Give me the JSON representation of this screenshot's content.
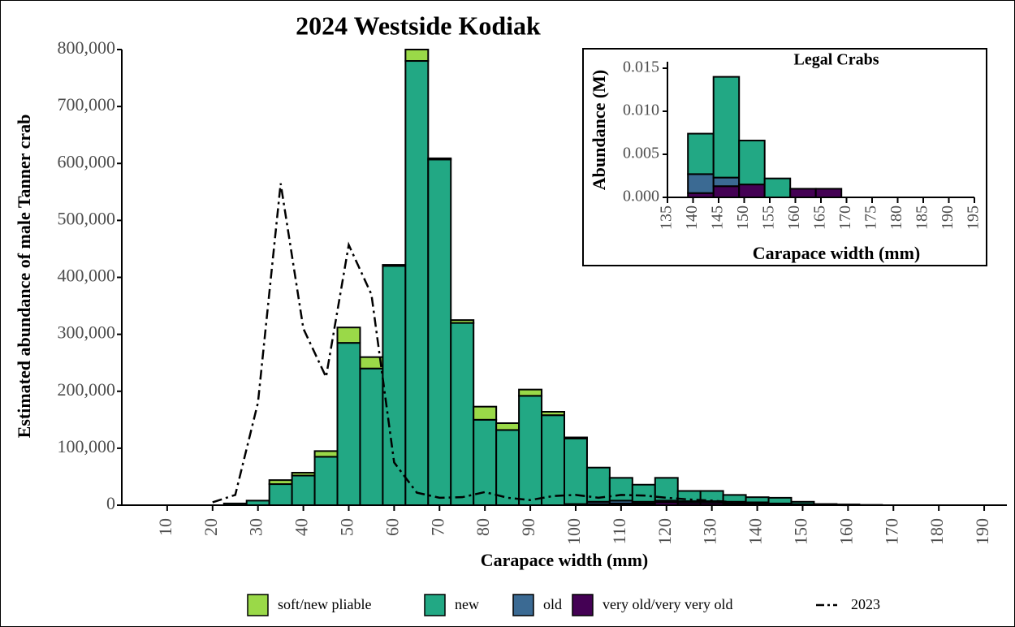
{
  "chart_data": [
    {
      "type": "bar",
      "title": "2024 Westside Kodiak",
      "xlabel": "Carapace width (mm)",
      "ylabel": "Estimated abundance of male Tanner crab",
      "x": [
        25,
        30,
        35,
        40,
        45,
        50,
        55,
        60,
        65,
        70,
        75,
        80,
        85,
        90,
        95,
        100,
        105,
        110,
        115,
        120,
        125,
        130,
        135,
        140,
        145,
        150,
        155,
        160,
        165
      ],
      "bar_width": 5,
      "stacked": true,
      "series": [
        {
          "name": "very old/very very old",
          "color": "#440154",
          "values": [
            null,
            null,
            null,
            null,
            null,
            null,
            null,
            null,
            null,
            null,
            null,
            null,
            null,
            null,
            null,
            null,
            2000,
            3000,
            3000,
            5000,
            4000,
            4000,
            3000,
            3000,
            2000,
            1000,
            500,
            300,
            null
          ]
        },
        {
          "name": "old",
          "color": "#3b6a93",
          "values": [
            null,
            null,
            null,
            null,
            null,
            null,
            null,
            null,
            null,
            null,
            null,
            null,
            null,
            null,
            null,
            2000,
            4000,
            5000,
            3000,
            3000,
            3000,
            3000,
            3000,
            2000,
            1000,
            1000,
            null,
            null,
            null
          ]
        },
        {
          "name": "new",
          "color": "#22a884",
          "values": [
            3000,
            8000,
            37000,
            52000,
            85000,
            285000,
            240000,
            420000,
            780000,
            607000,
            320000,
            150000,
            132000,
            192000,
            158000,
            115000,
            60000,
            40000,
            30000,
            40000,
            18000,
            18000,
            12000,
            9000,
            10000,
            4000,
            1500,
            1000,
            500
          ]
        },
        {
          "name": "soft/new pliable",
          "color": "#9ad948",
          "values": [
            null,
            null,
            7000,
            5000,
            10000,
            27000,
            20000,
            2000,
            20000,
            2000,
            5000,
            23000,
            12000,
            11000,
            6000,
            2000,
            null,
            null,
            null,
            null,
            null,
            null,
            null,
            null,
            null,
            null,
            null,
            null,
            null
          ]
        },
        {
          "name": "2023",
          "type": "line",
          "color": "#000000",
          "x": [
            20,
            25,
            30,
            35,
            40,
            45,
            50,
            55,
            60,
            65,
            70,
            75,
            80,
            85,
            90,
            95,
            100,
            105,
            110,
            115,
            120,
            125,
            130,
            135,
            140,
            145,
            150,
            155,
            160
          ],
          "values": [
            5000,
            18000,
            180000,
            565000,
            310000,
            225000,
            457000,
            370000,
            75000,
            22000,
            13000,
            14000,
            23000,
            13000,
            9000,
            16000,
            18000,
            13000,
            18000,
            17000,
            13000,
            10000,
            8000,
            5000,
            3000,
            2000,
            1000,
            500,
            200
          ]
        }
      ],
      "xlim": [
        0,
        195
      ],
      "xticks": [
        10,
        20,
        30,
        40,
        50,
        60,
        70,
        80,
        90,
        100,
        110,
        120,
        130,
        140,
        150,
        160,
        170,
        180,
        190
      ],
      "ylim": [
        0,
        800000
      ],
      "yticks": [
        0,
        {
          "value": 100000,
          "label": "100,000"
        },
        {
          "value": 200000,
          "label": "200,000"
        },
        {
          "value": 300000,
          "label": "300,000"
        },
        {
          "value": 400000,
          "label": "400,000"
        },
        {
          "value": 500000,
          "label": "500,000"
        },
        {
          "value": 600000,
          "label": "600,000"
        },
        {
          "value": 700000,
          "label": "700,000"
        },
        {
          "value": 800000,
          "label": "800,000"
        }
      ],
      "grid": false,
      "legend": "bottom"
    },
    {
      "type": "histogram",
      "title": "Legal Crabs",
      "xlabel": "Carapace width (mm)",
      "ylabel": "Abundance (M)",
      "bins": [
        139,
        144,
        149,
        154,
        159,
        164,
        169
      ],
      "series": [
        {
          "name": "very old/very very old",
          "color": "#440154",
          "values": [
            0.0005,
            0.0013,
            0.0015,
            null,
            0.001,
            0.001
          ]
        },
        {
          "name": "old",
          "color": "#3b6a93",
          "values": [
            0.0022,
            0.001,
            null,
            null,
            null,
            null
          ]
        },
        {
          "name": "new",
          "color": "#22a884",
          "values": [
            0.0047,
            0.0117,
            0.0051,
            0.0022,
            null,
            null
          ]
        }
      ],
      "xlim": [
        135,
        195
      ],
      "xticks": [
        135,
        140,
        145,
        150,
        155,
        160,
        165,
        170,
        175,
        180,
        185,
        190,
        195
      ],
      "ylim": [
        0,
        0.015
      ],
      "yticks": [
        {
          "value": 0,
          "label": "0.000"
        },
        0.005,
        {
          "value": 0.01,
          "label": "0.010"
        },
        0.015
      ]
    }
  ]
}
